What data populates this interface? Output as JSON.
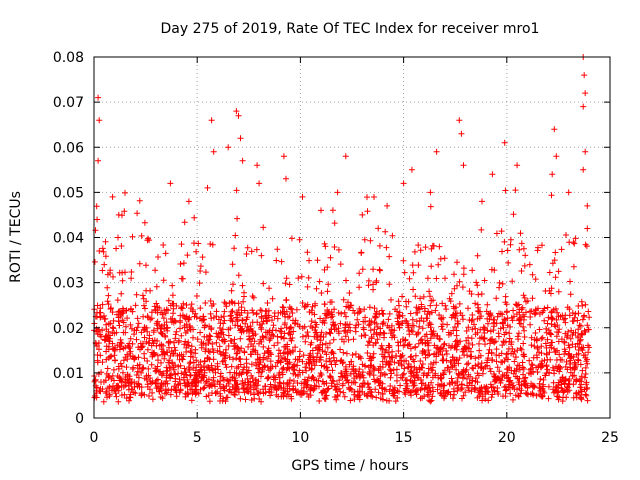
{
  "chart_data": {
    "type": "scatter",
    "title": "Day 275 of 2019, Rate Of TEC Index for receiver mro1",
    "xlabel": "GPS time / hours",
    "ylabel": "ROTI / TECUs",
    "xlim": [
      0,
      25
    ],
    "ylim": [
      0,
      0.08
    ],
    "xticks": [
      0,
      5,
      10,
      15,
      20,
      25
    ],
    "xtick_labels": [
      "0",
      "5",
      "10",
      "15",
      "20",
      "25"
    ],
    "yticks": [
      0,
      0.01,
      0.02,
      0.03,
      0.04,
      0.05,
      0.06,
      0.07,
      0.08
    ],
    "ytick_labels": [
      "0",
      "0.01",
      "0.02",
      "0.03",
      "0.04",
      "0.05",
      "0.06",
      "0.07",
      "0.08"
    ],
    "grid": true,
    "marker": "+",
    "color": "#ff0000",
    "series_summary": {
      "x_range_hours": [
        0,
        24
      ],
      "typical_band": [
        0.005,
        0.025
      ],
      "baseline_min": 0.003,
      "approx_point_count": 3000
    },
    "peaks": [
      {
        "x": 0.2,
        "y": 0.071
      },
      {
        "x": 0.25,
        "y": 0.066
      },
      {
        "x": 0.2,
        "y": 0.057
      },
      {
        "x": 0.15,
        "y": 0.044
      },
      {
        "x": 0.9,
        "y": 0.049
      },
      {
        "x": 1.2,
        "y": 0.045
      },
      {
        "x": 3.7,
        "y": 0.052
      },
      {
        "x": 4.6,
        "y": 0.048
      },
      {
        "x": 5.5,
        "y": 0.051
      },
      {
        "x": 5.7,
        "y": 0.066
      },
      {
        "x": 5.8,
        "y": 0.059
      },
      {
        "x": 6.5,
        "y": 0.06
      },
      {
        "x": 6.9,
        "y": 0.068
      },
      {
        "x": 7.0,
        "y": 0.067
      },
      {
        "x": 7.1,
        "y": 0.062
      },
      {
        "x": 7.2,
        "y": 0.057
      },
      {
        "x": 7.9,
        "y": 0.056
      },
      {
        "x": 8.0,
        "y": 0.052
      },
      {
        "x": 9.2,
        "y": 0.058
      },
      {
        "x": 9.3,
        "y": 0.053
      },
      {
        "x": 10.1,
        "y": 0.049
      },
      {
        "x": 11.0,
        "y": 0.046
      },
      {
        "x": 11.8,
        "y": 0.05
      },
      {
        "x": 12.2,
        "y": 0.058
      },
      {
        "x": 13.0,
        "y": 0.045
      },
      {
        "x": 14.2,
        "y": 0.047
      },
      {
        "x": 15.0,
        "y": 0.052
      },
      {
        "x": 15.4,
        "y": 0.055
      },
      {
        "x": 16.3,
        "y": 0.05
      },
      {
        "x": 16.6,
        "y": 0.059
      },
      {
        "x": 17.7,
        "y": 0.066
      },
      {
        "x": 17.8,
        "y": 0.063
      },
      {
        "x": 17.9,
        "y": 0.056
      },
      {
        "x": 18.8,
        "y": 0.048
      },
      {
        "x": 19.3,
        "y": 0.054
      },
      {
        "x": 19.9,
        "y": 0.061
      },
      {
        "x": 20.5,
        "y": 0.056
      },
      {
        "x": 22.3,
        "y": 0.064
      },
      {
        "x": 22.4,
        "y": 0.058
      },
      {
        "x": 22.2,
        "y": 0.054
      },
      {
        "x": 23.0,
        "y": 0.05
      },
      {
        "x": 23.7,
        "y": 0.08
      },
      {
        "x": 23.75,
        "y": 0.076
      },
      {
        "x": 23.8,
        "y": 0.072
      },
      {
        "x": 23.7,
        "y": 0.069
      },
      {
        "x": 23.8,
        "y": 0.059
      },
      {
        "x": 23.7,
        "y": 0.055
      },
      {
        "x": 23.9,
        "y": 0.047
      },
      {
        "x": 23.9,
        "y": 0.042
      }
    ]
  }
}
